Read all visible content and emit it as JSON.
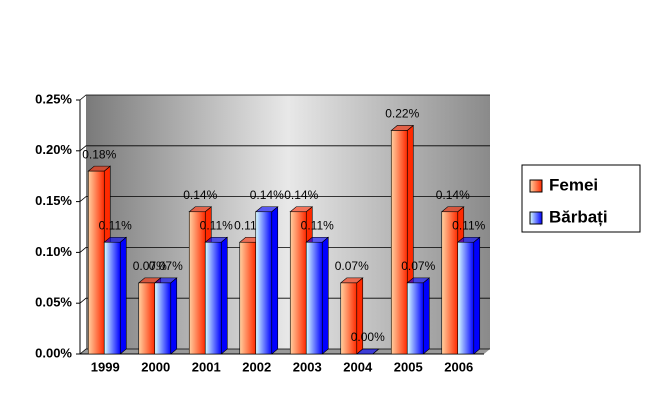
{
  "chart_data": {
    "type": "bar",
    "categories": [
      "1999",
      "2000",
      "2001",
      "2002",
      "2003",
      "2004",
      "2005",
      "2006"
    ],
    "series": [
      {
        "name": "Femei",
        "color": "#ff2a00",
        "values": [
          0.18,
          0.07,
          0.14,
          0.11,
          0.14,
          0.07,
          0.22,
          0.14
        ],
        "value_labels": [
          "0.18%",
          "0.07%",
          "0.14%",
          "0.11%",
          "0.14%",
          "0.07%",
          "0.22%",
          "0.14%"
        ]
      },
      {
        "name": "Bărbați",
        "color": "#0000ff",
        "values": [
          0.11,
          0.07,
          0.11,
          0.14,
          0.11,
          0.0,
          0.07,
          0.11
        ],
        "value_labels": [
          "0.11%",
          "0.07%",
          "0.11%",
          "0.14%",
          "0.11%",
          "0.00%",
          "0.07%",
          "0.11%"
        ]
      }
    ],
    "ylim": [
      0,
      0.25
    ],
    "yticks": [
      {
        "value": 0,
        "label": "0.00%"
      },
      {
        "value": 0.05,
        "label": "0.05%"
      },
      {
        "value": 0.1,
        "label": "0.10%"
      },
      {
        "value": 0.15,
        "label": "0.15%"
      },
      {
        "value": 0.2,
        "label": "0.20%"
      },
      {
        "value": 0.25,
        "label": "0.25%"
      }
    ],
    "grid": true,
    "legend": "right"
  }
}
